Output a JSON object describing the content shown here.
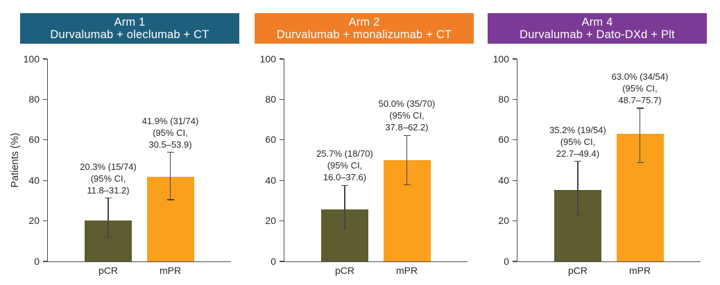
{
  "figure": {
    "background": "#ffffff",
    "axis_color": "#4a4a4a",
    "errorbar_color": "#454545",
    "text_color": "#262626"
  },
  "chart_data": [
    {
      "type": "bar",
      "title": "Arm 1",
      "subtitle": "Durvalumab + oleclumab + CT",
      "header_color": "#1f5f7e",
      "ylabel": "Patients (%)",
      "ylim": [
        0,
        100
      ],
      "yticks": [
        0,
        20,
        40,
        60,
        80,
        100
      ],
      "categories": [
        "pCR",
        "mPR"
      ],
      "bars": [
        {
          "category": "pCR",
          "value": 20.3,
          "ci_low": 11.8,
          "ci_high": 31.2,
          "color": "#5d5d30",
          "annotation": [
            "20.3% (15/74)",
            "(95% CI,",
            "11.8–31.2)"
          ]
        },
        {
          "category": "mPR",
          "value": 41.9,
          "ci_low": 30.5,
          "ci_high": 53.9,
          "color": "#fba01c",
          "annotation": [
            "41.9% (31/74)",
            "(95% CI,",
            "30.5–53.9)"
          ]
        }
      ]
    },
    {
      "type": "bar",
      "title": "Arm 2",
      "subtitle": "Durvalumab + monalizumab + CT",
      "header_color": "#ef7e27",
      "ylim": [
        0,
        100
      ],
      "yticks": [
        0,
        20,
        40,
        60,
        80,
        100
      ],
      "categories": [
        "pCR",
        "mPR"
      ],
      "bars": [
        {
          "category": "pCR",
          "value": 25.7,
          "ci_low": 16.0,
          "ci_high": 37.6,
          "color": "#5d5d30",
          "annotation": [
            "25.7% (18/70)",
            "(95% CI,",
            "16.0–37.6)"
          ]
        },
        {
          "category": "mPR",
          "value": 50.0,
          "ci_low": 37.8,
          "ci_high": 62.2,
          "color": "#fba01c",
          "annotation": [
            "50.0% (35/70)",
            "(95% CI,",
            "37.8–62.2)"
          ]
        }
      ]
    },
    {
      "type": "bar",
      "title": "Arm 4",
      "subtitle": "Durvalumab + Dato-DXd + Plt",
      "header_color": "#7b3a95",
      "ylim": [
        0,
        100
      ],
      "yticks": [
        0,
        20,
        40,
        60,
        80,
        100
      ],
      "categories": [
        "pCR",
        "mPR"
      ],
      "bars": [
        {
          "category": "pCR",
          "value": 35.2,
          "ci_low": 22.7,
          "ci_high": 49.4,
          "color": "#5d5d30",
          "annotation": [
            "35.2% (19/54)",
            "(95% CI,",
            "22.7–49.4)"
          ]
        },
        {
          "category": "mPR",
          "value": 63.0,
          "ci_low": 48.7,
          "ci_high": 75.7,
          "color": "#fba01c",
          "annotation": [
            "63.0% (34/54)",
            "(95% CI,",
            "48.7–75.7)"
          ]
        }
      ]
    }
  ]
}
